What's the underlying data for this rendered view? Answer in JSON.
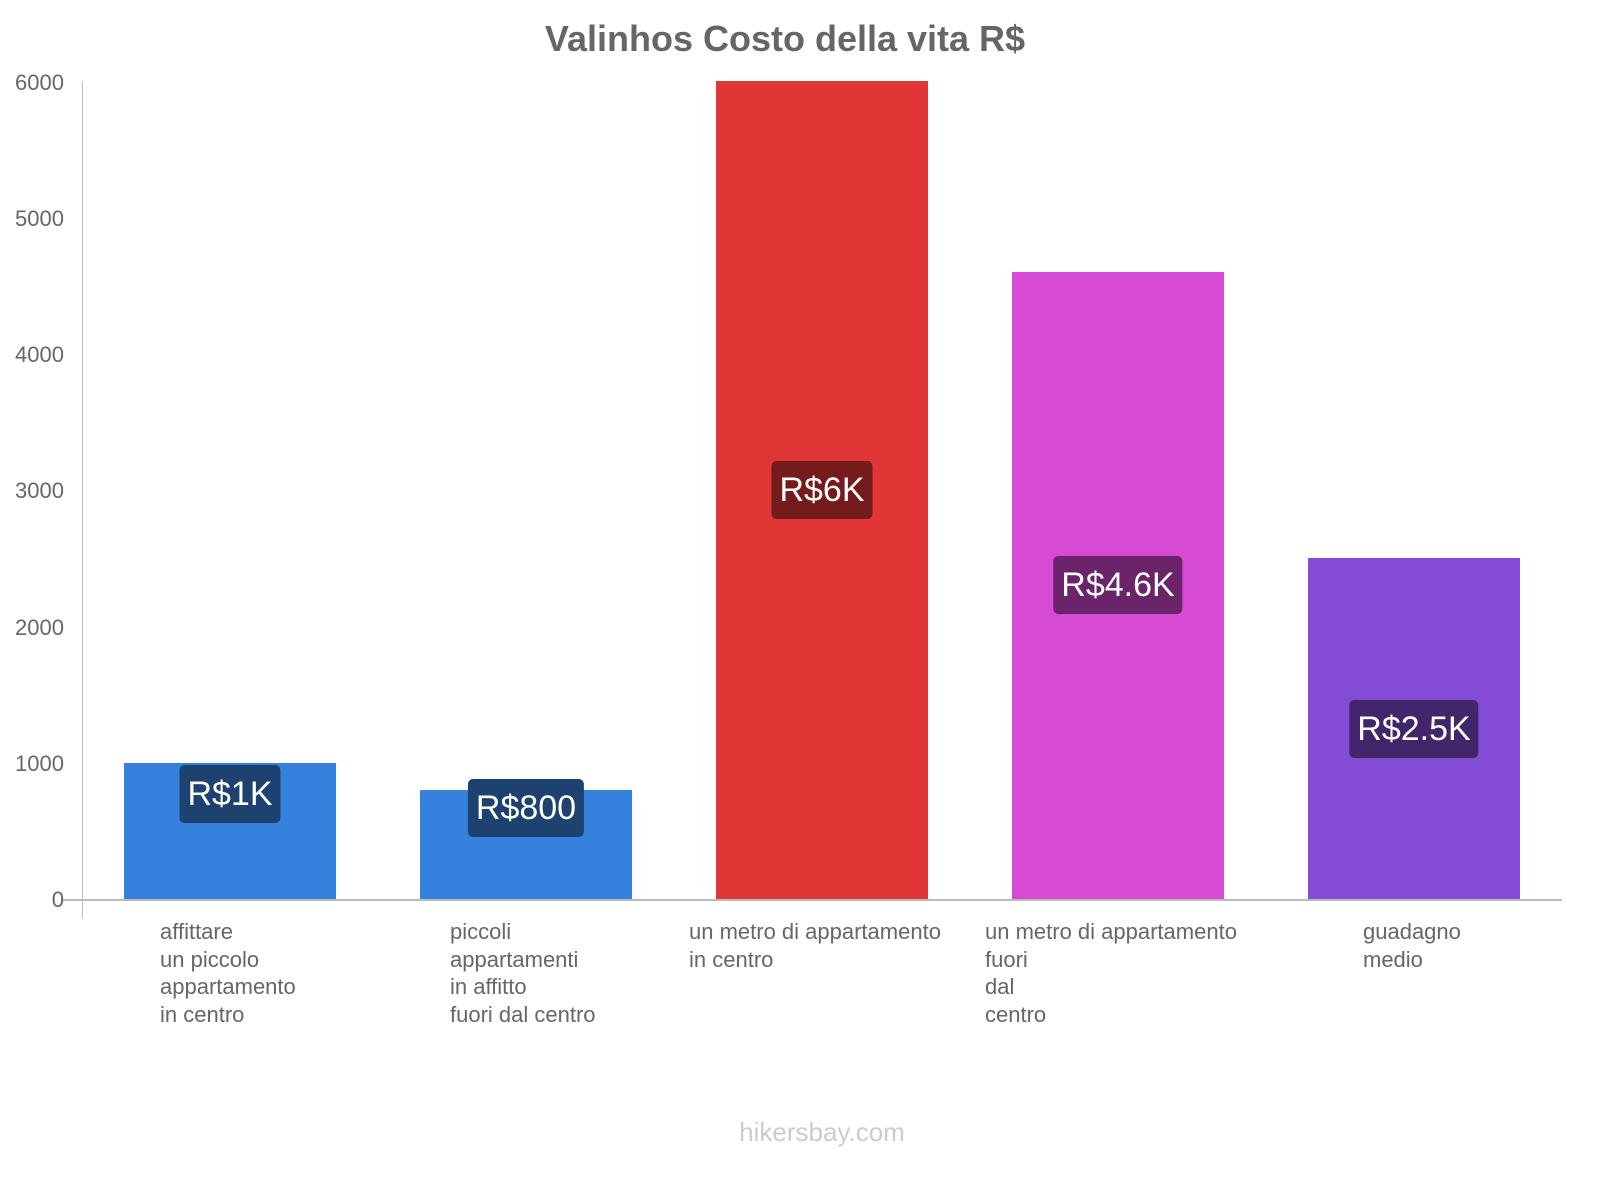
{
  "chart_data": {
    "type": "bar",
    "title": "Valinhos Costo della vita R$",
    "xlabel": "",
    "ylabel": "",
    "ylim": [
      0,
      6000
    ],
    "yticks": [
      "0",
      "1000",
      "2000",
      "3000",
      "4000",
      "5000",
      "6000"
    ],
    "grid": false,
    "legend": "none",
    "categories": [
      "affittare un piccolo appartamento in centro",
      "piccoli appartamenti in affitto fuori dal centro",
      "un metro di appartamento in centro",
      "un metro di appartamento fuori dal centro",
      "guadagno medio"
    ],
    "category_labels_wrapped": [
      "affittare\nun piccolo\nappartamento\nin centro",
      "piccoli\nappartamenti\nin affitto\nfuori dal centro",
      "un metro di appartamento\nin centro",
      "un metro di appartamento\nfuori\ndal\ncentro",
      "guadagno\nmedio"
    ],
    "values": [
      1000,
      800,
      6000,
      4600,
      2500
    ],
    "data_labels": [
      "R$1K",
      "R$800",
      "R$6K",
      "R$4.6K",
      "R$2.5K"
    ],
    "colors": [
      "#3582dd",
      "#3582dd",
      "#e03636",
      "#d74ad3",
      "#844bd7"
    ],
    "label_bg_colors": [
      "#1d426f",
      "#1d426f",
      "#751b1b",
      "#6b246a",
      "#42266c"
    ]
  },
  "footer": "hikersbay.com"
}
